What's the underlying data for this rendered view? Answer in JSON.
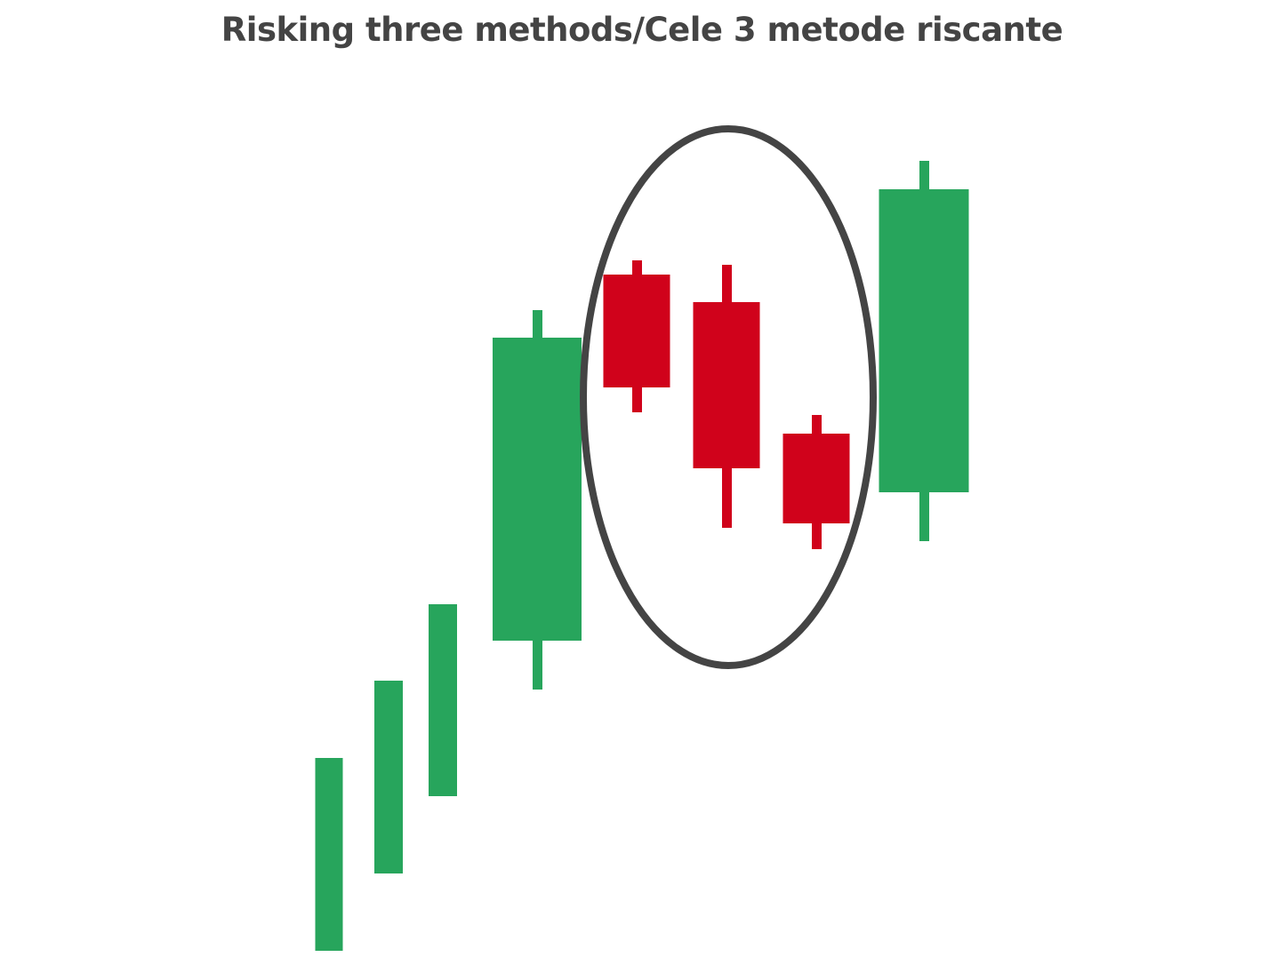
{
  "chart_data": {
    "type": "candlestick",
    "title": "Risking three methods/Cele 3 metode riscante",
    "xlabel": "",
    "ylabel": "",
    "grid": false,
    "axes_visible": false,
    "colors": {
      "up": "#27a55c",
      "down": "#d0021b",
      "highlight": "#444444"
    },
    "candles": [
      {
        "open": 3.0,
        "high": 24.7,
        "low": 3.0,
        "close": 24.7
      },
      {
        "open": 11.7,
        "high": 33.4,
        "low": 11.7,
        "close": 33.4
      },
      {
        "open": 20.4,
        "high": 42.0,
        "low": 20.4,
        "close": 42.0
      },
      {
        "open": 37.9,
        "high": 75.1,
        "low": 32.4,
        "close": 72.0
      },
      {
        "open": 79.1,
        "high": 80.7,
        "low": 63.6,
        "close": 66.4
      },
      {
        "open": 76.0,
        "high": 80.2,
        "low": 50.6,
        "close": 57.3
      },
      {
        "open": 61.2,
        "high": 63.3,
        "low": 48.2,
        "close": 51.1
      },
      {
        "open": 54.6,
        "high": 91.9,
        "low": 49.1,
        "close": 88.7
      }
    ],
    "highlighted_candles": [
      5,
      6,
      7
    ]
  }
}
